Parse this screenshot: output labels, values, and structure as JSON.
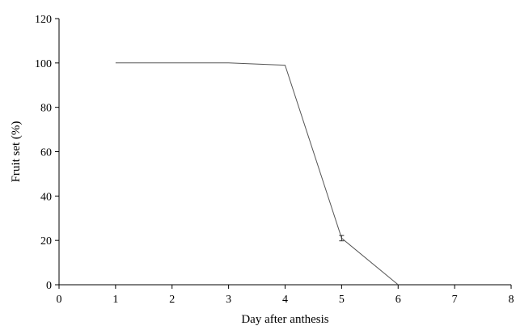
{
  "chart_data": {
    "type": "line",
    "title": "",
    "xlabel": "Day after anthesis",
    "ylabel": "Fruit set (%)",
    "xlim": [
      0,
      8
    ],
    "ylim": [
      0,
      120
    ],
    "xticks": [
      0,
      1,
      2,
      3,
      4,
      5,
      6,
      7,
      8
    ],
    "yticks": [
      0,
      20,
      40,
      60,
      80,
      100,
      120
    ],
    "grid": false,
    "legend": "none",
    "series": [
      {
        "x": [
          1,
          3,
          4,
          5,
          6
        ],
        "y": [
          100,
          100,
          99,
          21,
          0
        ],
        "error": [
          0,
          0,
          0,
          1.2,
          0
        ],
        "color": "#555555"
      }
    ]
  }
}
